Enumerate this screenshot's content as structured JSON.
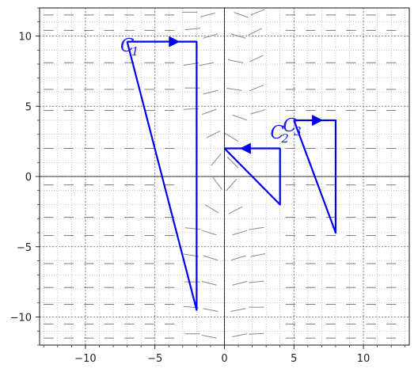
{
  "chart_data": {
    "type": "line",
    "title": "",
    "xlabel": "",
    "ylabel": "",
    "xlim": [
      -13.3,
      13.3
    ],
    "ylim": [
      -12.0,
      12.0
    ],
    "grid": true,
    "xticks": [
      -10,
      -5,
      0,
      5,
      10
    ],
    "yticks": [
      -10,
      -5,
      0,
      5,
      10
    ],
    "xtick_labels": [
      "−10",
      "−5",
      "0",
      "5",
      "10"
    ],
    "ytick_labels": [
      "−10",
      "−5",
      "0",
      "5",
      "10"
    ],
    "series": [
      {
        "label": "C",
        "subscript": "1",
        "color": "#0000ee",
        "points": [
          [
            -7,
            9.6
          ],
          [
            -2,
            9.6
          ],
          [
            -2,
            -9.5
          ],
          [
            -7,
            9.6
          ]
        ],
        "arrow_at": [
          -3.6,
          9.6
        ],
        "arrow_dir": "right",
        "label_at": [
          -7.5,
          8.9
        ]
      },
      {
        "label": "C",
        "subscript": "2",
        "color": "#0000ee",
        "points": [
          [
            0,
            2
          ],
          [
            4,
            2
          ],
          [
            4,
            -2
          ],
          [
            0,
            2
          ]
        ],
        "arrow_at": [
          1.5,
          2
        ],
        "arrow_dir": "left",
        "label_at": [
          3.3,
          2.7
        ]
      },
      {
        "label": "C",
        "subscript": "3",
        "color": "#0000ee",
        "points": [
          [
            5,
            4
          ],
          [
            8,
            4
          ],
          [
            8,
            -4
          ],
          [
            5,
            4
          ]
        ],
        "arrow_at": [
          6.7,
          4
        ],
        "arrow_dir": "right",
        "label_at": [
          4.2,
          3.2
        ]
      }
    ],
    "slope_field": {
      "color": "#888888",
      "segments": [
        [
          -2.5,
          11.7,
          0.0
        ],
        [
          -1.2,
          11.5,
          0.25
        ],
        [
          1.2,
          11.5,
          -0.35
        ],
        [
          2.4,
          11.7,
          0.4
        ],
        [
          -2.3,
          10.5,
          0.1
        ],
        [
          -1.0,
          10.0,
          0.3
        ],
        [
          1.0,
          10.0,
          -0.3
        ],
        [
          2.2,
          10.3,
          0.5
        ],
        [
          -2.4,
          8.0,
          0.15
        ],
        [
          -1.3,
          8.0,
          0.2
        ],
        [
          0.8,
          8.2,
          -0.2
        ],
        [
          2.3,
          8.4,
          0.45
        ],
        [
          -2.3,
          6.3,
          0.0
        ],
        [
          -1.0,
          6.0,
          0.25
        ],
        [
          0.7,
          6.2,
          -0.15
        ],
        [
          2.3,
          6.3,
          0.4
        ],
        [
          -2.4,
          4.8,
          0.05
        ],
        [
          -1.1,
          4.6,
          0.35
        ],
        [
          1.1,
          4.2,
          -0.35
        ],
        [
          2.4,
          4.6,
          0.3
        ],
        [
          -0.8,
          3.0,
          0.5
        ],
        [
          0.5,
          2.8,
          -0.6
        ],
        [
          -0.6,
          1.2,
          1.2
        ],
        [
          0.6,
          1.0,
          -1.0
        ],
        [
          -0.5,
          -0.5,
          -1.3
        ],
        [
          0.5,
          -0.6,
          1.1
        ],
        [
          -0.9,
          -2.3,
          -0.6
        ],
        [
          0.8,
          -2.4,
          0.5
        ],
        [
          -2.3,
          -3.7,
          -0.1
        ],
        [
          -1.1,
          -4.0,
          -0.3
        ],
        [
          1.1,
          -4.0,
          0.3
        ],
        [
          2.3,
          -3.7,
          0.15
        ],
        [
          -2.4,
          -5.6,
          -0.15
        ],
        [
          -1.0,
          -5.8,
          -0.3
        ],
        [
          1.0,
          -5.8,
          0.3
        ],
        [
          2.4,
          -5.6,
          0.2
        ],
        [
          -2.3,
          -7.5,
          0.0
        ],
        [
          -1.1,
          -7.6,
          -0.25
        ],
        [
          1.1,
          -7.6,
          0.25
        ],
        [
          2.3,
          -7.5,
          0.1
        ],
        [
          -2.4,
          -9.3,
          -0.1
        ],
        [
          -1.0,
          -9.5,
          -0.2
        ],
        [
          1.0,
          -9.5,
          0.2
        ],
        [
          2.3,
          -9.3,
          0.0
        ],
        [
          -2.3,
          -11.2,
          0.0
        ],
        [
          -1.1,
          -11.4,
          -0.2
        ],
        [
          1.1,
          -11.3,
          0.2
        ],
        [
          2.3,
          -11.2,
          0.05
        ]
      ]
    }
  }
}
